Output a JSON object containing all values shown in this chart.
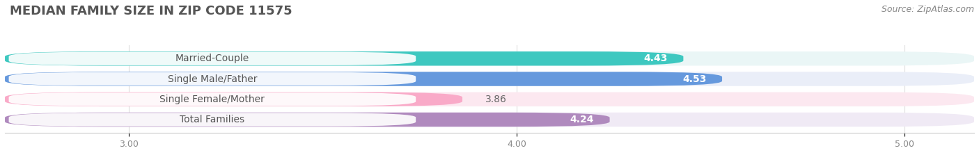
{
  "title": "MEDIAN FAMILY SIZE IN ZIP CODE 11575",
  "source": "Source: ZipAtlas.com",
  "categories": [
    "Married-Couple",
    "Single Male/Father",
    "Single Female/Mother",
    "Total Families"
  ],
  "values": [
    4.43,
    4.53,
    3.86,
    4.24
  ],
  "bar_colors": [
    "#3ec8c0",
    "#6699dd",
    "#f9aac8",
    "#b08abe"
  ],
  "bar_bg_colors": [
    "#eaf6f6",
    "#eaeef8",
    "#fce8f0",
    "#f0eaf5"
  ],
  "xlim": [
    2.68,
    5.18
  ],
  "xstart": 2.68,
  "xticks": [
    3.0,
    4.0,
    5.0
  ],
  "xtick_labels": [
    "3.00",
    "4.00",
    "5.00"
  ],
  "value_fontsize": 10,
  "label_fontsize": 10,
  "title_fontsize": 13,
  "source_fontsize": 9,
  "figsize": [
    14.06,
    2.33
  ],
  "dpi": 100,
  "bg_color": "#ffffff"
}
